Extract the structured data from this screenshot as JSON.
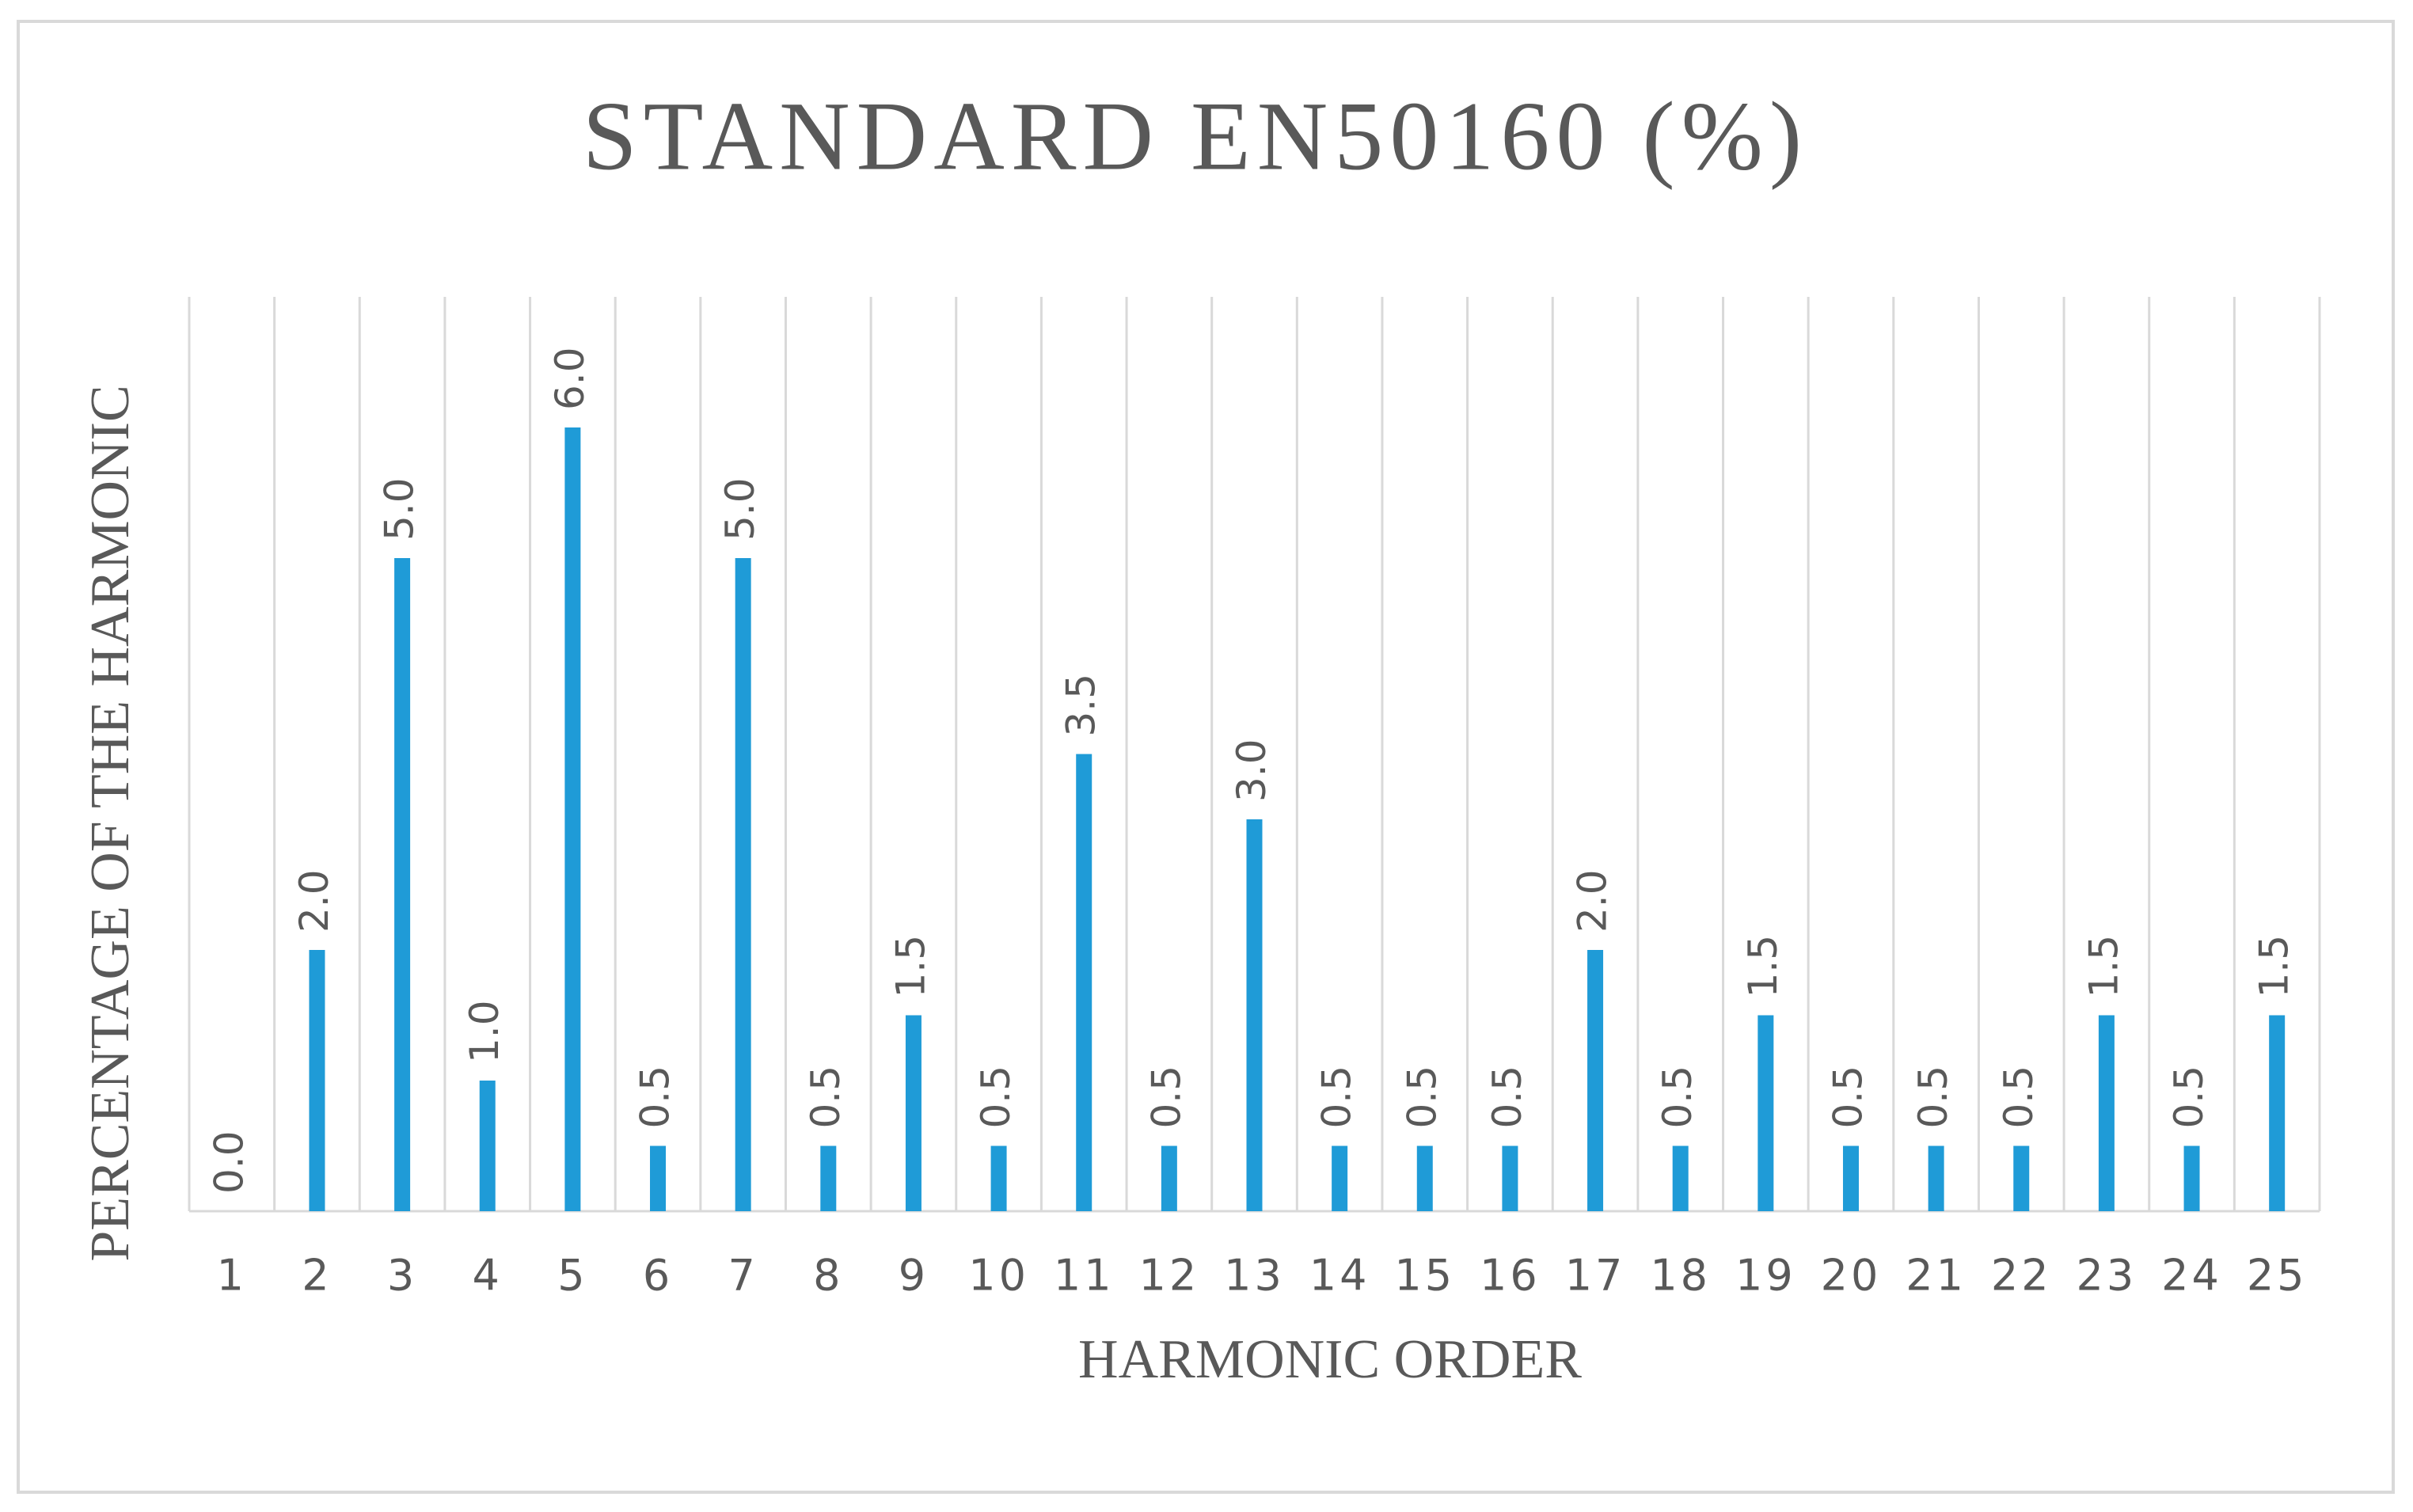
{
  "chart_data": {
    "type": "bar",
    "title": "STANDARD EN50160 (%)",
    "x_label": "HARMONIC ORDER",
    "y_label": "PERCENTAGE OF THE HARMONIC",
    "categories": [
      1,
      2,
      3,
      4,
      5,
      6,
      7,
      8,
      9,
      10,
      11,
      12,
      13,
      14,
      15,
      16,
      17,
      18,
      19,
      20,
      21,
      22,
      23,
      24,
      25
    ],
    "values": [
      0.0,
      2.0,
      5.0,
      1.0,
      6.0,
      0.5,
      5.0,
      0.5,
      1.5,
      0.5,
      3.5,
      0.5,
      3.0,
      0.5,
      0.5,
      0.5,
      2.0,
      0.5,
      1.5,
      0.5,
      0.5,
      0.5,
      1.5,
      0.5,
      1.5
    ],
    "value_labels": [
      "0.0",
      "2.0",
      "5.0",
      "1.0",
      "6.0",
      "0.5",
      "5.0",
      "0.5",
      "1.5",
      "0.5",
      "3.5",
      "0.5",
      "3.0",
      "0.5",
      "0.5",
      "0.5",
      "2.0",
      "0.5",
      "1.5",
      "0.5",
      "0.5",
      "0.5",
      "1.5",
      "0.5",
      "1.5"
    ],
    "color": "#1f9bd7",
    "ylim": [
      0,
      7
    ],
    "grid": true
  }
}
